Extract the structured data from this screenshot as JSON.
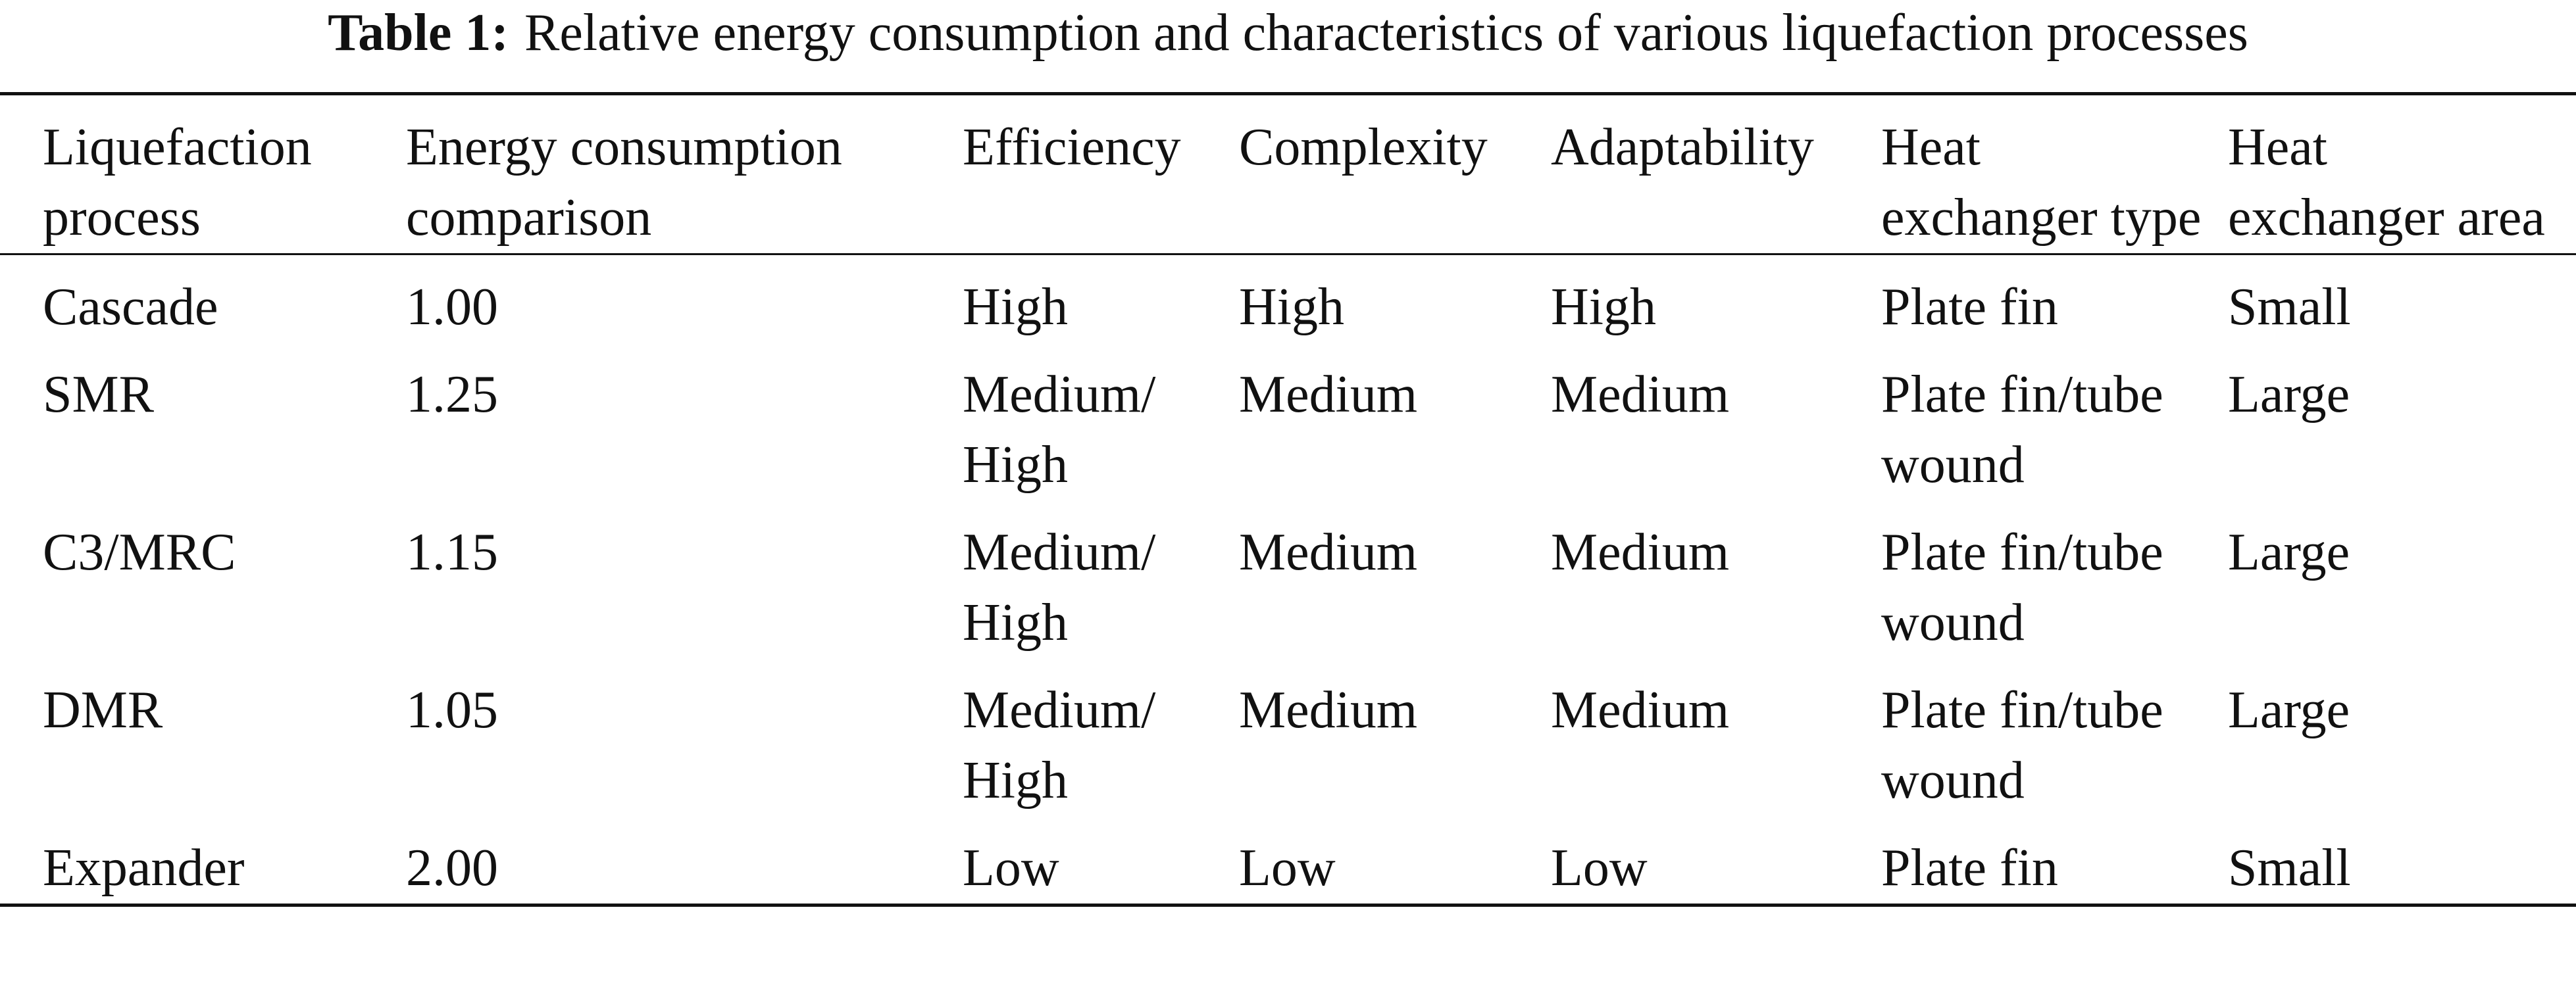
{
  "caption": {
    "label": "Table 1:",
    "text": "Relative energy consumption and characteristics of various liquefaction processes"
  },
  "table": {
    "header": [
      "Liquefaction process",
      "Energy consumption comparison",
      "Efficiency",
      "Complexity",
      "Adaptability",
      "Heat exchanger type",
      "Heat exchanger area"
    ],
    "rows": [
      [
        "Cascade",
        "1.00",
        "High",
        "High",
        "High",
        "Plate fin",
        "Small"
      ],
      [
        "SMR",
        "1.25",
        "Medium/ High",
        "Medium",
        "Medium",
        "Plate fin/tube wound",
        "Large"
      ],
      [
        "C3/MRC",
        "1.15",
        "Medium/ High",
        "Medium",
        "Medium",
        "Plate fin/tube wound",
        "Large"
      ],
      [
        "DMR",
        "1.05",
        "Medium/ High",
        "Medium",
        "Medium",
        "Plate fin/tube wound",
        "Large"
      ],
      [
        "Expander",
        "2.00",
        "Low",
        "Low",
        "Low",
        "Plate fin",
        "Small"
      ]
    ]
  }
}
